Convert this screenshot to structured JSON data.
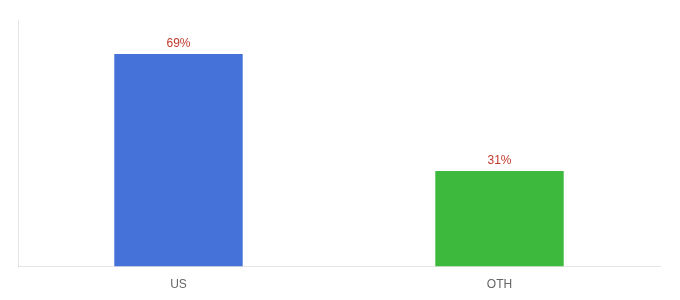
{
  "chart_data": {
    "type": "bar",
    "categories": [
      "US",
      "OTH"
    ],
    "values": [
      69,
      31
    ],
    "value_labels": [
      "69%",
      "31%"
    ],
    "colors": [
      "#4472d9",
      "#3dba3d"
    ],
    "ylim": [
      0,
      80
    ],
    "grid": false,
    "data_labels": true,
    "tick_labels": "x"
  }
}
